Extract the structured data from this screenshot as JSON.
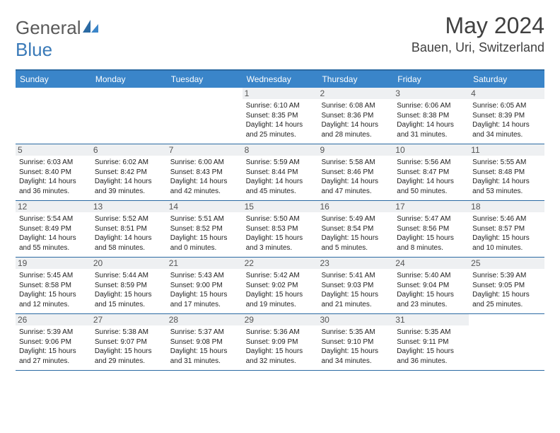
{
  "logo": {
    "part1": "General",
    "part2": "Blue"
  },
  "title": "May 2024",
  "location": "Bauen, Uri, Switzerland",
  "accent_color": "#3a85c9",
  "border_color": "#2b6aa3",
  "dayhead_bg": "#3a85c9",
  "daynum_bg": "#eef0f2",
  "dayheads": [
    "Sunday",
    "Monday",
    "Tuesday",
    "Wednesday",
    "Thursday",
    "Friday",
    "Saturday"
  ],
  "weeks": [
    [
      null,
      null,
      null,
      {
        "n": "1",
        "sr": "6:10 AM",
        "ss": "8:35 PM",
        "dl": "14 hours and 25 minutes."
      },
      {
        "n": "2",
        "sr": "6:08 AM",
        "ss": "8:36 PM",
        "dl": "14 hours and 28 minutes."
      },
      {
        "n": "3",
        "sr": "6:06 AM",
        "ss": "8:38 PM",
        "dl": "14 hours and 31 minutes."
      },
      {
        "n": "4",
        "sr": "6:05 AM",
        "ss": "8:39 PM",
        "dl": "14 hours and 34 minutes."
      }
    ],
    [
      {
        "n": "5",
        "sr": "6:03 AM",
        "ss": "8:40 PM",
        "dl": "14 hours and 36 minutes."
      },
      {
        "n": "6",
        "sr": "6:02 AM",
        "ss": "8:42 PM",
        "dl": "14 hours and 39 minutes."
      },
      {
        "n": "7",
        "sr": "6:00 AM",
        "ss": "8:43 PM",
        "dl": "14 hours and 42 minutes."
      },
      {
        "n": "8",
        "sr": "5:59 AM",
        "ss": "8:44 PM",
        "dl": "14 hours and 45 minutes."
      },
      {
        "n": "9",
        "sr": "5:58 AM",
        "ss": "8:46 PM",
        "dl": "14 hours and 47 minutes."
      },
      {
        "n": "10",
        "sr": "5:56 AM",
        "ss": "8:47 PM",
        "dl": "14 hours and 50 minutes."
      },
      {
        "n": "11",
        "sr": "5:55 AM",
        "ss": "8:48 PM",
        "dl": "14 hours and 53 minutes."
      }
    ],
    [
      {
        "n": "12",
        "sr": "5:54 AM",
        "ss": "8:49 PM",
        "dl": "14 hours and 55 minutes."
      },
      {
        "n": "13",
        "sr": "5:52 AM",
        "ss": "8:51 PM",
        "dl": "14 hours and 58 minutes."
      },
      {
        "n": "14",
        "sr": "5:51 AM",
        "ss": "8:52 PM",
        "dl": "15 hours and 0 minutes."
      },
      {
        "n": "15",
        "sr": "5:50 AM",
        "ss": "8:53 PM",
        "dl": "15 hours and 3 minutes."
      },
      {
        "n": "16",
        "sr": "5:49 AM",
        "ss": "8:54 PM",
        "dl": "15 hours and 5 minutes."
      },
      {
        "n": "17",
        "sr": "5:47 AM",
        "ss": "8:56 PM",
        "dl": "15 hours and 8 minutes."
      },
      {
        "n": "18",
        "sr": "5:46 AM",
        "ss": "8:57 PM",
        "dl": "15 hours and 10 minutes."
      }
    ],
    [
      {
        "n": "19",
        "sr": "5:45 AM",
        "ss": "8:58 PM",
        "dl": "15 hours and 12 minutes."
      },
      {
        "n": "20",
        "sr": "5:44 AM",
        "ss": "8:59 PM",
        "dl": "15 hours and 15 minutes."
      },
      {
        "n": "21",
        "sr": "5:43 AM",
        "ss": "9:00 PM",
        "dl": "15 hours and 17 minutes."
      },
      {
        "n": "22",
        "sr": "5:42 AM",
        "ss": "9:02 PM",
        "dl": "15 hours and 19 minutes."
      },
      {
        "n": "23",
        "sr": "5:41 AM",
        "ss": "9:03 PM",
        "dl": "15 hours and 21 minutes."
      },
      {
        "n": "24",
        "sr": "5:40 AM",
        "ss": "9:04 PM",
        "dl": "15 hours and 23 minutes."
      },
      {
        "n": "25",
        "sr": "5:39 AM",
        "ss": "9:05 PM",
        "dl": "15 hours and 25 minutes."
      }
    ],
    [
      {
        "n": "26",
        "sr": "5:39 AM",
        "ss": "9:06 PM",
        "dl": "15 hours and 27 minutes."
      },
      {
        "n": "27",
        "sr": "5:38 AM",
        "ss": "9:07 PM",
        "dl": "15 hours and 29 minutes."
      },
      {
        "n": "28",
        "sr": "5:37 AM",
        "ss": "9:08 PM",
        "dl": "15 hours and 31 minutes."
      },
      {
        "n": "29",
        "sr": "5:36 AM",
        "ss": "9:09 PM",
        "dl": "15 hours and 32 minutes."
      },
      {
        "n": "30",
        "sr": "5:35 AM",
        "ss": "9:10 PM",
        "dl": "15 hours and 34 minutes."
      },
      {
        "n": "31",
        "sr": "5:35 AM",
        "ss": "9:11 PM",
        "dl": "15 hours and 36 minutes."
      },
      null
    ]
  ],
  "labels": {
    "sunrise": "Sunrise: ",
    "sunset": "Sunset: ",
    "daylight": "Daylight: "
  }
}
